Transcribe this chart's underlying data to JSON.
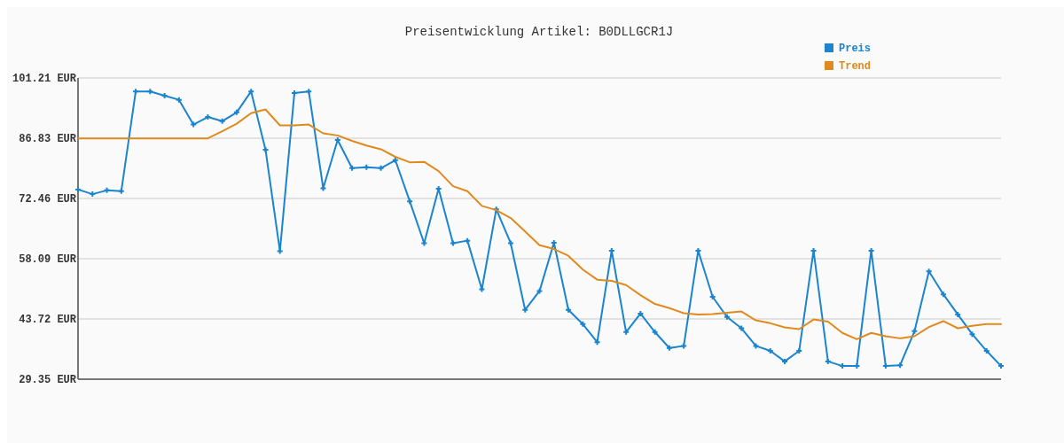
{
  "chart_data": {
    "type": "line",
    "title": "Preisentwicklung Artikel: B0DLLGCR1J",
    "categories": [
      null,
      null,
      null,
      null,
      null,
      null,
      null,
      null,
      null,
      null,
      null,
      null,
      null,
      null,
      null,
      null,
      null,
      null,
      null,
      null,
      null,
      null,
      null,
      null,
      null,
      null,
      null,
      null,
      null,
      null,
      null,
      null,
      null,
      null,
      null,
      null,
      null,
      null,
      null,
      null,
      null,
      null,
      null,
      null,
      null,
      null,
      null,
      null,
      null,
      null,
      null,
      null,
      null,
      null,
      null,
      null,
      null,
      null,
      null,
      null,
      null,
      null,
      null,
      null,
      null
    ],
    "series": [
      {
        "name": "Preis",
        "color": "#1a84cf",
        "marker": "cross",
        "values": [
          74.6,
          73.5,
          74.4,
          74.2,
          98.0,
          98.0,
          97.0,
          96.0,
          90.1,
          91.9,
          90.9,
          93.0,
          98.0,
          84.1,
          59.9,
          97.6,
          98.0,
          74.9,
          86.4,
          79.7,
          79.9,
          79.7,
          81.6,
          71.8,
          61.8,
          74.8,
          61.8,
          62.4,
          50.8,
          69.9,
          61.8,
          45.9,
          50.4,
          61.9,
          45.9,
          42.5,
          38.2,
          60.0,
          40.6,
          45.0,
          40.6,
          36.8,
          37.3,
          60.0,
          49.0,
          44.2,
          41.5,
          37.3,
          36.1,
          33.6,
          36.1,
          60.0,
          33.6,
          32.5,
          32.5,
          60.0,
          32.5,
          32.7,
          40.8,
          55.1,
          49.6,
          44.8,
          40.1,
          36.1,
          32.5
        ]
      },
      {
        "name": "Trend",
        "color": "#e08a1e",
        "marker": "none",
        "values": [
          86.8,
          86.8,
          86.8,
          86.8,
          86.8,
          86.8,
          86.8,
          86.8,
          86.8,
          86.8,
          88.5,
          90.3,
          92.8,
          93.7,
          89.9,
          89.9,
          90.1,
          88.0,
          87.5,
          86.2,
          85.1,
          84.2,
          82.4,
          81.1,
          81.2,
          79.0,
          75.4,
          74.2,
          70.7,
          69.7,
          67.8,
          64.6,
          61.3,
          60.4,
          58.8,
          55.5,
          53.1,
          52.8,
          51.8,
          49.4,
          47.3,
          46.3,
          45.1,
          44.8,
          44.9,
          45.2,
          45.5,
          43.4,
          42.7,
          41.7,
          41.3,
          43.6,
          43.1,
          40.4,
          38.9,
          40.4,
          39.6,
          39.1,
          39.6,
          41.8,
          43.2,
          41.5,
          42.1,
          42.5,
          42.5
        ]
      }
    ],
    "ylim": [
      29.35,
      101.21
    ],
    "yticks": [
      {
        "value": 29.35,
        "label": "29.35 EUR"
      },
      {
        "value": 43.72,
        "label": "43.72 EUR"
      },
      {
        "value": 58.09,
        "label": "58.09 EUR"
      },
      {
        "value": 72.46,
        "label": "72.46 EUR"
      },
      {
        "value": 86.83,
        "label": "86.83 EUR"
      },
      {
        "value": 101.21,
        "label": "101.21 EUR"
      }
    ],
    "grid": "y",
    "legend": "top right",
    "line_style": "solid"
  }
}
